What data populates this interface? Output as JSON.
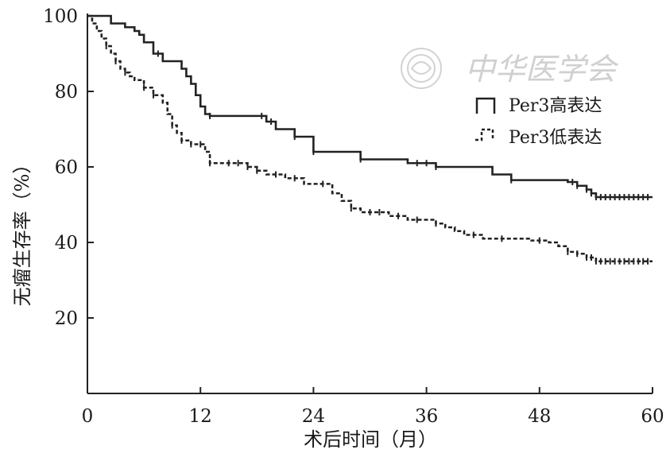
{
  "chart_data": {
    "type": "line",
    "step": true,
    "title": "",
    "xlabel": "术后时间（月）",
    "ylabel": "无瘤生存率（%）",
    "xlim": [
      0,
      60
    ],
    "ylim": [
      0,
      100
    ],
    "xticks": [
      0,
      12,
      24,
      36,
      48,
      60
    ],
    "yticks": [
      20,
      40,
      60,
      80,
      100
    ],
    "grid": false,
    "legend_position": "top-right",
    "series": [
      {
        "name": "Per3高表达",
        "line_style": "solid",
        "color": "#222222",
        "x": [
          0,
          2.5,
          3,
          4,
          5,
          5.5,
          6,
          7,
          8,
          9,
          10,
          10.5,
          11,
          11.5,
          12,
          12.5,
          13,
          13.5,
          18,
          19,
          20,
          22,
          24,
          29,
          34,
          37,
          43,
          45,
          51,
          52,
          53,
          53.5,
          54,
          60
        ],
        "y": [
          100,
          98,
          98,
          97,
          96,
          95,
          93,
          90,
          88,
          88,
          86,
          84,
          82,
          79,
          76,
          74,
          73.5,
          73.5,
          73.5,
          72,
          70,
          68,
          64,
          62,
          61,
          60,
          58,
          56.5,
          56,
          55,
          54,
          53,
          52,
          52
        ],
        "censored_x": [
          7.5,
          13,
          18.5,
          19.5,
          22,
          24,
          29,
          35,
          36,
          37,
          45,
          51.5,
          52,
          53,
          53.5,
          54,
          54.5,
          55,
          55.5,
          56,
          56.5,
          57,
          57.5,
          58,
          58.5,
          59,
          59.5
        ]
      },
      {
        "name": "Per3低表达",
        "line_style": "dashed",
        "color": "#222222",
        "x": [
          0,
          0.5,
          1,
          1.5,
          2,
          2.5,
          3,
          3.5,
          4,
          4.5,
          5,
          6,
          7,
          8,
          8.5,
          9,
          9.5,
          10,
          11,
          12,
          12.5,
          13,
          14,
          15,
          17,
          18,
          19,
          21,
          23,
          25,
          26,
          27,
          28,
          29,
          32,
          34,
          35,
          37,
          38,
          39,
          40,
          42,
          44,
          46,
          47,
          49,
          50,
          51,
          52,
          53,
          54,
          60
        ],
        "y": [
          100,
          98,
          96,
          94,
          92,
          90,
          88,
          86,
          85,
          84,
          83,
          81,
          79,
          77,
          74,
          71,
          69,
          67,
          66,
          66,
          64,
          61,
          61,
          61,
          60,
          59,
          58,
          57,
          55.5,
          55.5,
          53,
          51,
          49,
          48,
          47,
          46,
          46,
          45,
          44,
          43,
          42,
          41,
          41,
          41,
          40.5,
          40,
          39,
          37.5,
          37,
          36,
          35,
          35
        ],
        "censored_x": [
          2,
          3,
          4,
          6,
          7,
          9,
          10,
          11,
          12,
          13,
          15,
          16,
          17,
          18,
          20,
          22,
          25,
          28,
          30,
          31,
          33,
          35,
          37,
          41,
          44,
          48,
          51,
          52,
          53,
          53.5,
          54,
          54.5,
          55,
          55.5,
          56,
          56.5,
          57,
          57.5,
          58,
          58.5,
          59,
          59.5
        ]
      }
    ]
  },
  "watermark": {
    "text": "中华医学会"
  }
}
